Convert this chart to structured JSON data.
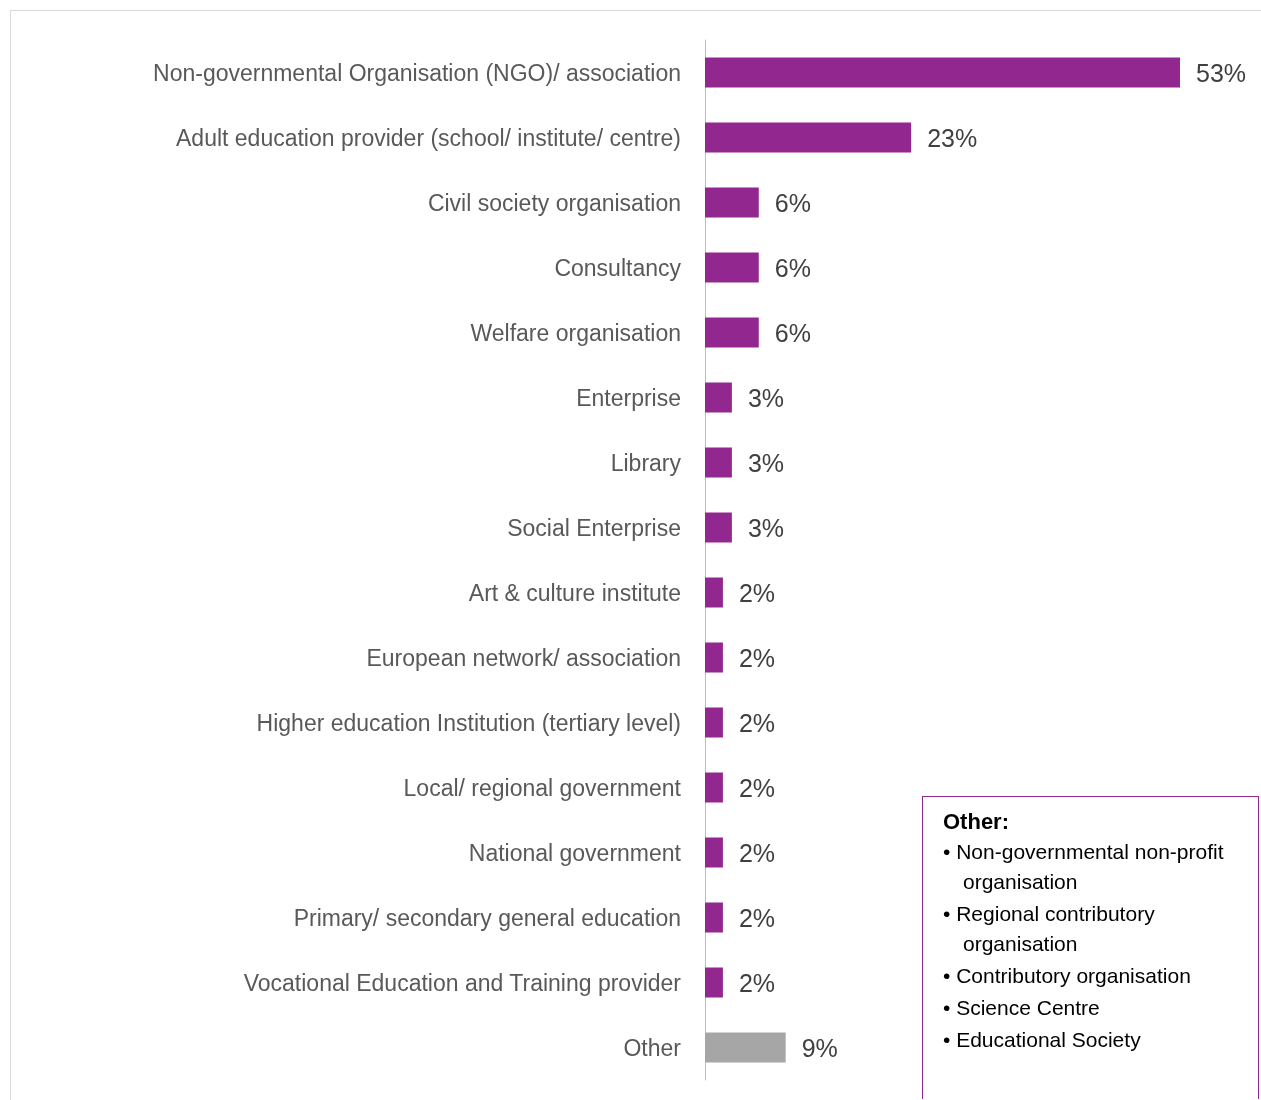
{
  "chart_data": {
    "type": "bar",
    "orientation": "horizontal",
    "categories": [
      "Non-governmental Organisation (NGO)/ association",
      "Adult education provider (school/ institute/ centre)",
      "Civil society organisation",
      "Consultancy",
      "Welfare organisation",
      "Enterprise",
      "Library",
      "Social Enterprise",
      "Art & culture institute",
      "European network/ association",
      "Higher education Institution (tertiary level)",
      "Local/ regional government",
      "National government",
      "Primary/ secondary general education",
      "Vocational Education and Training provider",
      "Other"
    ],
    "values": [
      53,
      23,
      6,
      6,
      6,
      3,
      3,
      3,
      2,
      2,
      2,
      2,
      2,
      2,
      2,
      9
    ],
    "value_labels": [
      "53%",
      "23%",
      "6%",
      "6%",
      "6%",
      "3%",
      "3%",
      "3%",
      "2%",
      "2%",
      "2%",
      "2%",
      "2%",
      "2%",
      "2%",
      "9%"
    ],
    "colors": [
      "#92278f",
      "#92278f",
      "#92278f",
      "#92278f",
      "#92278f",
      "#92278f",
      "#92278f",
      "#92278f",
      "#92278f",
      "#92278f",
      "#92278f",
      "#92278f",
      "#92278f",
      "#92278f",
      "#92278f",
      "#a6a6a6"
    ],
    "annotations": [
      "Other:",
      "• Non-governmental non-profit organisation",
      "• Regional contributory organisation",
      "• Contributory organisation",
      "• Science Centre",
      "• Educational Society"
    ]
  }
}
